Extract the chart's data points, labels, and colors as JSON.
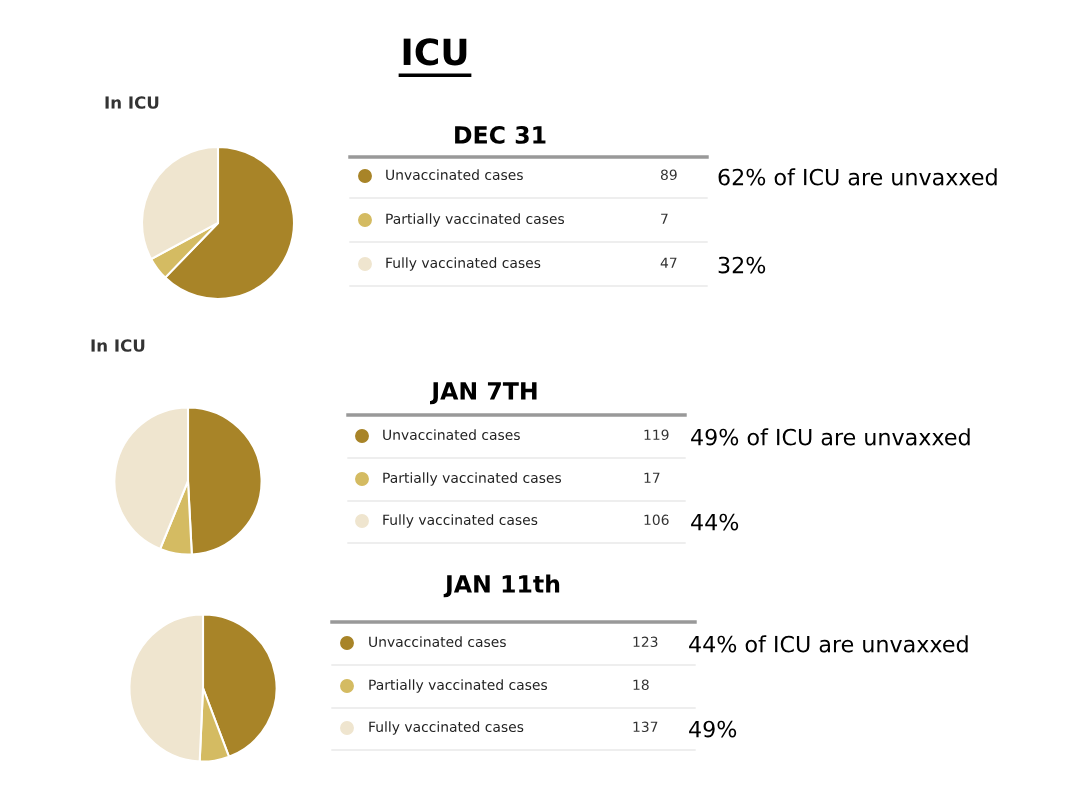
{
  "chart_data": [
    {
      "type": "other",
      "title": "ICU"
    },
    {
      "type": "pie",
      "title": "DEC 31",
      "subtitle": "In ICU",
      "categories": [
        "Unvaccinated cases",
        "Partially vaccinated cases",
        "Fully vaccinated cases"
      ],
      "values": [
        89,
        7,
        47
      ],
      "colors": [
        "#a88428",
        "#d4bb62",
        "#efe5cf"
      ],
      "data_labels": true,
      "legend": "right",
      "annotations": [
        "62% of ICU are unvaxxed",
        "32%"
      ]
    },
    {
      "type": "pie",
      "title": "JAN 7TH",
      "subtitle": "In ICU",
      "categories": [
        "Unvaccinated cases",
        "Partially vaccinated cases",
        "Fully vaccinated cases"
      ],
      "values": [
        119,
        17,
        106
      ],
      "colors": [
        "#a88428",
        "#d4bb62",
        "#efe5cf"
      ],
      "data_labels": true,
      "legend": "right",
      "annotations": [
        "49% of ICU are unvaxxed",
        "44%"
      ]
    },
    {
      "type": "pie",
      "title": "JAN 11th",
      "categories": [
        "Unvaccinated cases",
        "Partially vaccinated cases",
        "Fully vaccinated cases"
      ],
      "values": [
        123,
        18,
        137
      ],
      "colors": [
        "#a88428",
        "#d4bb62",
        "#efe5cf"
      ],
      "data_labels": true,
      "legend": "right",
      "annotations": [
        "44% of ICU are unvaxxed",
        "49%"
      ]
    }
  ]
}
